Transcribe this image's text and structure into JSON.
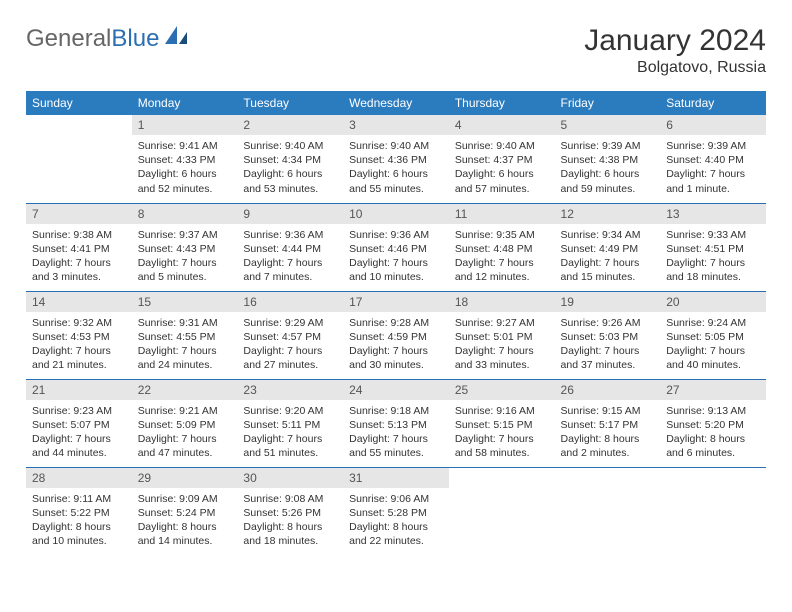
{
  "brand": {
    "part1": "General",
    "part2": "Blue"
  },
  "title": "January 2024",
  "location": "Bolgatovo, Russia",
  "colors": {
    "header_bg": "#2b7bbf",
    "header_text": "#ffffff",
    "daynum_bg": "#e6e6e6",
    "border": "#2b6fb3",
    "brand_gray": "#666666",
    "brand_blue": "#2b6fb3"
  },
  "weekdays": [
    "Sunday",
    "Monday",
    "Tuesday",
    "Wednesday",
    "Thursday",
    "Friday",
    "Saturday"
  ],
  "first_weekday_index": 1,
  "days": [
    {
      "n": 1,
      "sunrise": "9:41 AM",
      "sunset": "4:33 PM",
      "daylight": "6 hours and 52 minutes."
    },
    {
      "n": 2,
      "sunrise": "9:40 AM",
      "sunset": "4:34 PM",
      "daylight": "6 hours and 53 minutes."
    },
    {
      "n": 3,
      "sunrise": "9:40 AM",
      "sunset": "4:36 PM",
      "daylight": "6 hours and 55 minutes."
    },
    {
      "n": 4,
      "sunrise": "9:40 AM",
      "sunset": "4:37 PM",
      "daylight": "6 hours and 57 minutes."
    },
    {
      "n": 5,
      "sunrise": "9:39 AM",
      "sunset": "4:38 PM",
      "daylight": "6 hours and 59 minutes."
    },
    {
      "n": 6,
      "sunrise": "9:39 AM",
      "sunset": "4:40 PM",
      "daylight": "7 hours and 1 minute."
    },
    {
      "n": 7,
      "sunrise": "9:38 AM",
      "sunset": "4:41 PM",
      "daylight": "7 hours and 3 minutes."
    },
    {
      "n": 8,
      "sunrise": "9:37 AM",
      "sunset": "4:43 PM",
      "daylight": "7 hours and 5 minutes."
    },
    {
      "n": 9,
      "sunrise": "9:36 AM",
      "sunset": "4:44 PM",
      "daylight": "7 hours and 7 minutes."
    },
    {
      "n": 10,
      "sunrise": "9:36 AM",
      "sunset": "4:46 PM",
      "daylight": "7 hours and 10 minutes."
    },
    {
      "n": 11,
      "sunrise": "9:35 AM",
      "sunset": "4:48 PM",
      "daylight": "7 hours and 12 minutes."
    },
    {
      "n": 12,
      "sunrise": "9:34 AM",
      "sunset": "4:49 PM",
      "daylight": "7 hours and 15 minutes."
    },
    {
      "n": 13,
      "sunrise": "9:33 AM",
      "sunset": "4:51 PM",
      "daylight": "7 hours and 18 minutes."
    },
    {
      "n": 14,
      "sunrise": "9:32 AM",
      "sunset": "4:53 PM",
      "daylight": "7 hours and 21 minutes."
    },
    {
      "n": 15,
      "sunrise": "9:31 AM",
      "sunset": "4:55 PM",
      "daylight": "7 hours and 24 minutes."
    },
    {
      "n": 16,
      "sunrise": "9:29 AM",
      "sunset": "4:57 PM",
      "daylight": "7 hours and 27 minutes."
    },
    {
      "n": 17,
      "sunrise": "9:28 AM",
      "sunset": "4:59 PM",
      "daylight": "7 hours and 30 minutes."
    },
    {
      "n": 18,
      "sunrise": "9:27 AM",
      "sunset": "5:01 PM",
      "daylight": "7 hours and 33 minutes."
    },
    {
      "n": 19,
      "sunrise": "9:26 AM",
      "sunset": "5:03 PM",
      "daylight": "7 hours and 37 minutes."
    },
    {
      "n": 20,
      "sunrise": "9:24 AM",
      "sunset": "5:05 PM",
      "daylight": "7 hours and 40 minutes."
    },
    {
      "n": 21,
      "sunrise": "9:23 AM",
      "sunset": "5:07 PM",
      "daylight": "7 hours and 44 minutes."
    },
    {
      "n": 22,
      "sunrise": "9:21 AM",
      "sunset": "5:09 PM",
      "daylight": "7 hours and 47 minutes."
    },
    {
      "n": 23,
      "sunrise": "9:20 AM",
      "sunset": "5:11 PM",
      "daylight": "7 hours and 51 minutes."
    },
    {
      "n": 24,
      "sunrise": "9:18 AM",
      "sunset": "5:13 PM",
      "daylight": "7 hours and 55 minutes."
    },
    {
      "n": 25,
      "sunrise": "9:16 AM",
      "sunset": "5:15 PM",
      "daylight": "7 hours and 58 minutes."
    },
    {
      "n": 26,
      "sunrise": "9:15 AM",
      "sunset": "5:17 PM",
      "daylight": "8 hours and 2 minutes."
    },
    {
      "n": 27,
      "sunrise": "9:13 AM",
      "sunset": "5:20 PM",
      "daylight": "8 hours and 6 minutes."
    },
    {
      "n": 28,
      "sunrise": "9:11 AM",
      "sunset": "5:22 PM",
      "daylight": "8 hours and 10 minutes."
    },
    {
      "n": 29,
      "sunrise": "9:09 AM",
      "sunset": "5:24 PM",
      "daylight": "8 hours and 14 minutes."
    },
    {
      "n": 30,
      "sunrise": "9:08 AM",
      "sunset": "5:26 PM",
      "daylight": "8 hours and 18 minutes."
    },
    {
      "n": 31,
      "sunrise": "9:06 AM",
      "sunset": "5:28 PM",
      "daylight": "8 hours and 22 minutes."
    }
  ],
  "labels": {
    "sunrise": "Sunrise:",
    "sunset": "Sunset:",
    "daylight": "Daylight:"
  }
}
